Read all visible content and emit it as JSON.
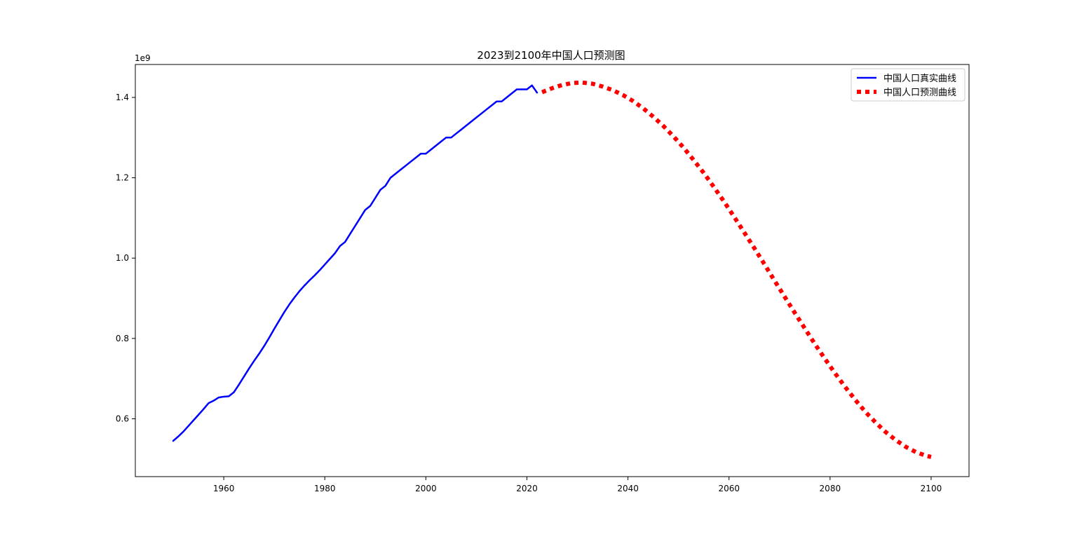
{
  "chart_data": {
    "type": "line",
    "title": "2023到2100年中国人口预测图",
    "xlabel": "",
    "ylabel": "",
    "y_offset_label": "1e9",
    "xlim": [
      1942.5,
      2107.5
    ],
    "ylim": [
      0.456,
      1.482
    ],
    "x_ticks": [
      1960,
      1980,
      2000,
      2020,
      2040,
      2060,
      2080,
      2100
    ],
    "x_tick_labels": [
      "1960",
      "1980",
      "2000",
      "2020",
      "2040",
      "2060",
      "2080",
      "2100"
    ],
    "y_ticks": [
      0.6,
      0.8,
      1.0,
      1.2,
      1.4
    ],
    "y_tick_labels": [
      "0.6",
      "0.8",
      "1.0",
      "1.2",
      "1.4"
    ],
    "grid": false,
    "legend_position": "top-right",
    "series": [
      {
        "name": "中国人口真实曲线",
        "color": "#0000ff",
        "style": "solid",
        "x": [
          1950,
          1951,
          1952,
          1953,
          1954,
          1955,
          1956,
          1957,
          1958,
          1959,
          1960,
          1961,
          1962,
          1963,
          1964,
          1965,
          1966,
          1967,
          1968,
          1969,
          1970,
          1971,
          1972,
          1973,
          1974,
          1975,
          1976,
          1977,
          1978,
          1979,
          1980,
          1981,
          1982,
          1983,
          1984,
          1985,
          1986,
          1987,
          1988,
          1989,
          1990,
          1991,
          1992,
          1993,
          1994,
          1995,
          1996,
          1997,
          1998,
          1999,
          2000,
          2001,
          2002,
          2003,
          2004,
          2005,
          2006,
          2007,
          2008,
          2009,
          2010,
          2011,
          2012,
          2013,
          2014,
          2015,
          2016,
          2017,
          2018,
          2019,
          2020,
          2021,
          2022
        ],
        "y": [
          0.545,
          0.556,
          0.568,
          0.582,
          0.596,
          0.61,
          0.624,
          0.639,
          0.645,
          0.653,
          0.655,
          0.656,
          0.666,
          0.685,
          0.705,
          0.725,
          0.744,
          0.762,
          0.781,
          0.802,
          0.824,
          0.845,
          0.866,
          0.885,
          0.902,
          0.918,
          0.932,
          0.945,
          0.957,
          0.97,
          0.984,
          0.998,
          1.012,
          1.03,
          1.04,
          1.06,
          1.08,
          1.1,
          1.12,
          1.13,
          1.15,
          1.17,
          1.18,
          1.2,
          1.21,
          1.22,
          1.23,
          1.24,
          1.25,
          1.26,
          1.26,
          1.27,
          1.28,
          1.29,
          1.3,
          1.3,
          1.31,
          1.32,
          1.33,
          1.34,
          1.35,
          1.36,
          1.37,
          1.38,
          1.39,
          1.39,
          1.4,
          1.41,
          1.42,
          1.42,
          1.42,
          1.43,
          1.412
        ]
      },
      {
        "name": "中国人口预测曲线",
        "color": "#ff0000",
        "style": "dotted",
        "x": [
          2023,
          2025,
          2027,
          2029,
          2031,
          2033,
          2035,
          2037,
          2039,
          2041,
          2043,
          2045,
          2047,
          2049,
          2051,
          2053,
          2055,
          2057,
          2059,
          2061,
          2063,
          2065,
          2067,
          2069,
          2071,
          2073,
          2075,
          2077,
          2079,
          2081,
          2083,
          2085,
          2087,
          2089,
          2091,
          2093,
          2095,
          2097,
          2099,
          2100
        ],
        "y": [
          1.413,
          1.423,
          1.431,
          1.436,
          1.437,
          1.434,
          1.427,
          1.418,
          1.406,
          1.391,
          1.373,
          1.352,
          1.329,
          1.303,
          1.275,
          1.244,
          1.212,
          1.177,
          1.141,
          1.103,
          1.064,
          1.025,
          0.985,
          0.944,
          0.904,
          0.864,
          0.825,
          0.786,
          0.749,
          0.713,
          0.679,
          0.647,
          0.617,
          0.591,
          0.567,
          0.547,
          0.53,
          0.517,
          0.508,
          0.505
        ]
      }
    ]
  }
}
